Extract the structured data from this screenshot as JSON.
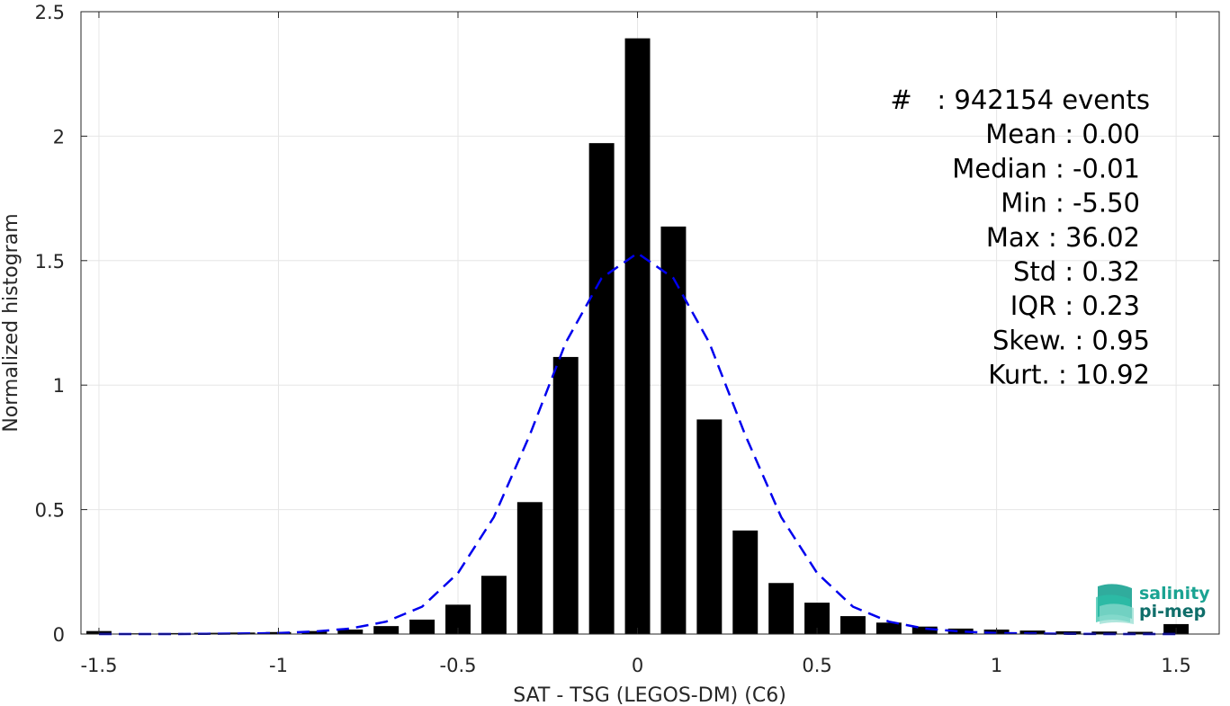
{
  "chart_data": {
    "type": "bar",
    "xlabel": "SAT - TSG (LEGOS-DM) (C6)",
    "ylabel": "Normalized histogram",
    "xlim": [
      -1.55,
      1.62
    ],
    "ylim": [
      0,
      2.5
    ],
    "grid": true,
    "x_ticks": [
      -1.5,
      -1,
      -0.5,
      0,
      0.5,
      1,
      1.5
    ],
    "x_tick_labels": [
      "-1.5",
      "-1",
      "-0.5",
      "0",
      "0.5",
      "1",
      "1.5"
    ],
    "y_ticks": [
      0,
      0.5,
      1,
      1.5,
      2,
      2.5
    ],
    "y_tick_labels": [
      "0",
      "0.5",
      "1",
      "1.5",
      "2",
      "2.5"
    ],
    "bin_width": 0.1,
    "bar_width": 0.07,
    "bars": {
      "x": [
        -1.5,
        -1.4,
        -1.3,
        -1.2,
        -1.1,
        -1.0,
        -0.9,
        -0.8,
        -0.7,
        -0.6,
        -0.5,
        -0.4,
        -0.3,
        -0.2,
        -0.1,
        0.0,
        0.1,
        0.2,
        0.3,
        0.4,
        0.5,
        0.6,
        0.7,
        0.8,
        0.9,
        1.0,
        1.1,
        1.2,
        1.3,
        1.4,
        1.5
      ],
      "values": [
        0.012,
        0.003,
        0.004,
        0.005,
        0.006,
        0.008,
        0.012,
        0.018,
        0.032,
        0.058,
        0.118,
        0.234,
        0.53,
        1.113,
        1.972,
        2.393,
        1.637,
        0.862,
        0.416,
        0.205,
        0.126,
        0.072,
        0.046,
        0.03,
        0.022,
        0.018,
        0.014,
        0.011,
        0.01,
        0.009,
        0.04
      ]
    },
    "fit_curve": {
      "style": "dashed",
      "color": "#0000ee",
      "x": [
        -1.5,
        -1.4,
        -1.3,
        -1.2,
        -1.1,
        -1.0,
        -0.9,
        -0.8,
        -0.7,
        -0.6,
        -0.5,
        -0.4,
        -0.3,
        -0.2,
        -0.1,
        0.0,
        0.1,
        0.2,
        0.3,
        0.4,
        0.5,
        0.6,
        0.7,
        0.8,
        0.9,
        1.0,
        1.1,
        1.2,
        1.3,
        1.4,
        1.5
      ],
      "values": [
        0.0,
        0.0,
        0.0,
        0.001,
        0.002,
        0.004,
        0.01,
        0.022,
        0.05,
        0.11,
        0.245,
        0.47,
        0.8,
        1.17,
        1.43,
        1.53,
        1.43,
        1.17,
        0.8,
        0.47,
        0.245,
        0.11,
        0.05,
        0.022,
        0.01,
        0.004,
        0.002,
        0.001,
        0.0,
        0.0,
        0.0
      ]
    },
    "stats": [
      "#   : 942154 events",
      "Mean : 0.00",
      "Median : -0.01",
      "Min : -5.50",
      "Max : 36.02",
      "Std : 0.32",
      "IQR : 0.23",
      "Skew. : 0.95",
      "Kurt. : 10.92"
    ]
  },
  "logo": {
    "line1": "salinity",
    "line2": "pi-mep",
    "color_primary": "#1aa392",
    "color_secondary": "#0f6e6a"
  }
}
